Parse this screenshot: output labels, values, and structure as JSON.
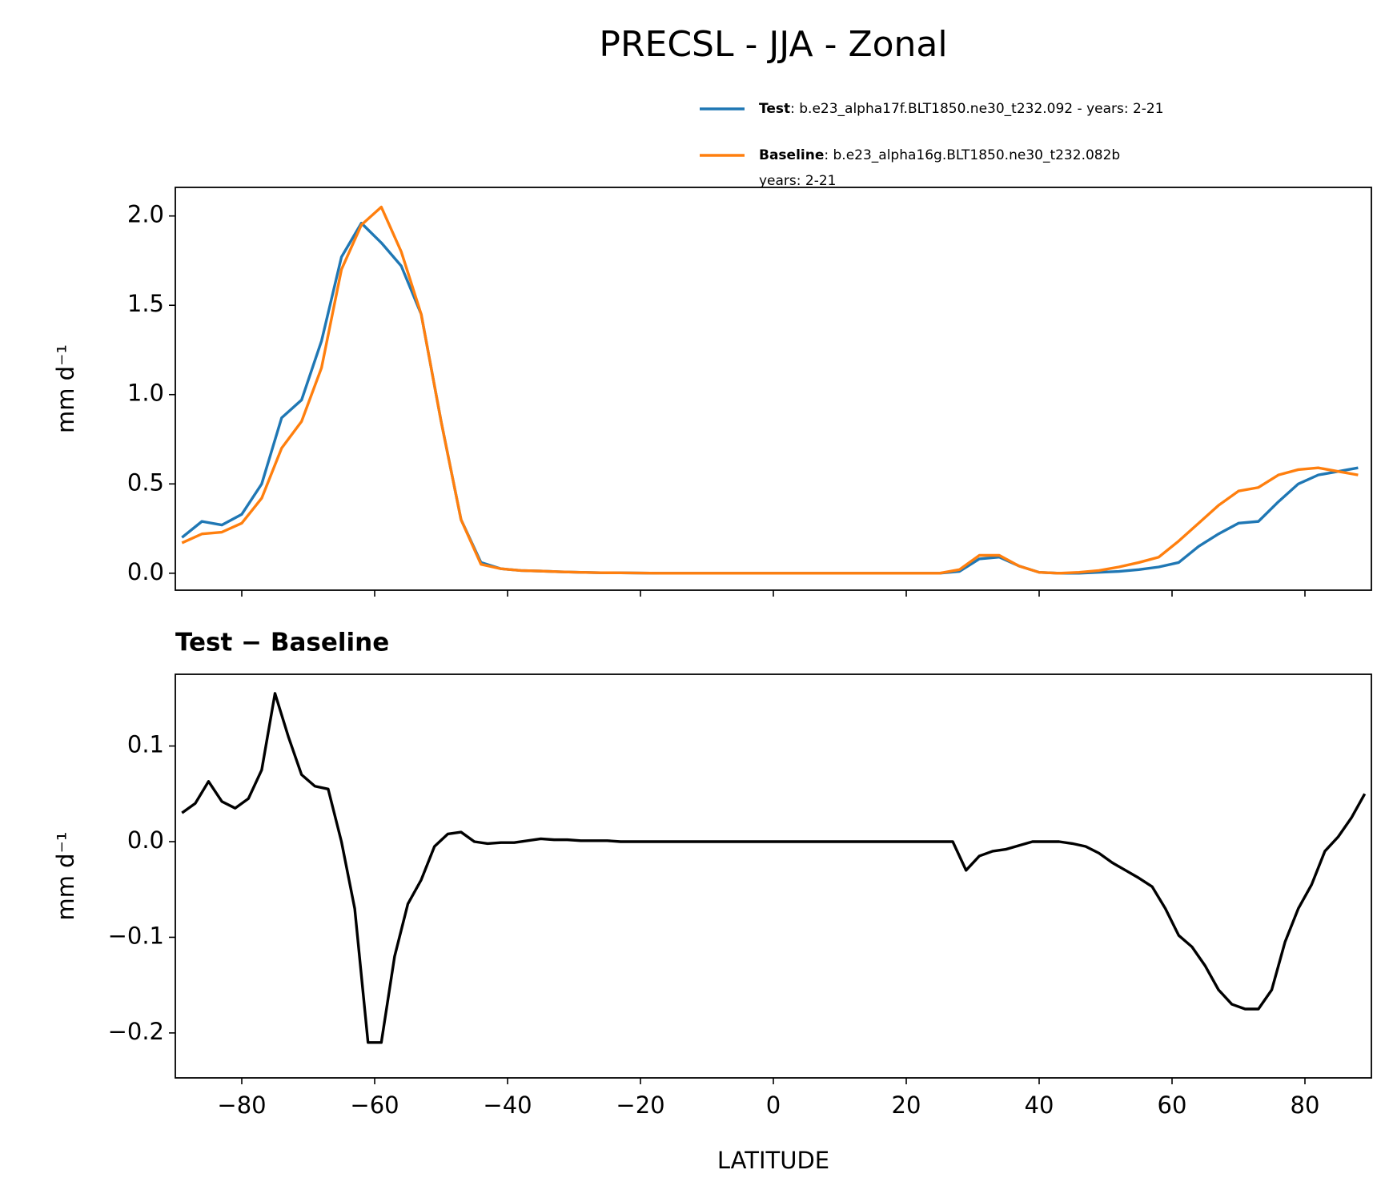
{
  "chart_data": [
    {
      "type": "line",
      "title": "PRECSL - JJA - Zonal",
      "ylabel": "mm d⁻¹",
      "legend": "above-right",
      "xlim": [
        -90,
        90
      ],
      "ylim": [
        -0.095,
        2.16
      ],
      "xticks": [
        -80,
        -60,
        -40,
        -20,
        0,
        20,
        40,
        60,
        80
      ],
      "yticks": [
        {
          "value": 0,
          "label": "0.0"
        },
        0.5,
        {
          "value": 1,
          "label": "1.0"
        },
        1.5,
        {
          "value": 2,
          "label": "2.0"
        }
      ],
      "x": [
        -89,
        -86,
        -83,
        -80,
        -77,
        -74,
        -71,
        -68,
        -65,
        -62,
        -59,
        -56,
        -53,
        -50,
        -47,
        -44,
        -41,
        -38,
        -35,
        -32,
        -29,
        -26,
        -23,
        -20,
        -17,
        -14,
        -11,
        -8,
        -5,
        -2,
        1,
        4,
        7,
        10,
        13,
        16,
        19,
        22,
        25,
        28,
        31,
        34,
        37,
        40,
        43,
        46,
        49,
        52,
        55,
        58,
        61,
        64,
        67,
        70,
        73,
        76,
        79,
        82,
        85,
        88
      ],
      "series": [
        {
          "name": "Test",
          "description": [
            ": b.e23_alpha17f.BLT1850.ne30_t232.092 - years: 2-21"
          ],
          "color": "#1f77b4",
          "values": [
            0.2,
            0.29,
            0.27,
            0.33,
            0.5,
            0.87,
            0.97,
            1.3,
            1.77,
            1.96,
            1.85,
            1.72,
            1.45,
            0.85,
            0.3,
            0.06,
            0.025,
            0.015,
            0.012,
            0.008,
            0.005,
            0.003,
            0.002,
            0.001,
            0,
            0,
            0,
            0,
            0,
            0,
            0,
            0,
            0,
            0,
            0,
            0,
            0,
            0,
            0,
            0.01,
            0.08,
            0.09,
            0.04,
            0.005,
            0,
            0,
            0.005,
            0.01,
            0.02,
            0.035,
            0.06,
            0.15,
            0.22,
            0.28,
            0.29,
            0.4,
            0.5,
            0.55,
            0.57,
            0.59
          ]
        },
        {
          "name": "Baseline",
          "description": [
            ": b.e23_alpha16g.BLT1850.ne30_t232.082b",
            "years: 2-21"
          ],
          "color": "#ff7f0e",
          "values": [
            0.17,
            0.22,
            0.23,
            0.28,
            0.42,
            0.7,
            0.85,
            1.15,
            1.7,
            1.95,
            2.05,
            1.8,
            1.45,
            0.85,
            0.3,
            0.05,
            0.025,
            0.015,
            0.012,
            0.008,
            0.005,
            0.003,
            0.002,
            0.001,
            0,
            0,
            0,
            0,
            0,
            0,
            0,
            0,
            0,
            0,
            0,
            0,
            0,
            0,
            0,
            0.02,
            0.1,
            0.1,
            0.04,
            0.005,
            0,
            0.005,
            0.015,
            0.035,
            0.06,
            0.09,
            0.18,
            0.28,
            0.38,
            0.46,
            0.48,
            0.55,
            0.58,
            0.59,
            0.57,
            0.55
          ]
        }
      ]
    },
    {
      "type": "line",
      "title": "Test − Baseline",
      "ylabel": "mm d⁻¹",
      "xlabel": "LATITUDE",
      "xlim": [
        -90,
        90
      ],
      "ylim": [
        -0.247,
        0.175
      ],
      "xticks": [
        {
          "value": -80,
          "label": "−80"
        },
        {
          "value": -60,
          "label": "−60"
        },
        {
          "value": -40,
          "label": "−40"
        },
        {
          "value": -20,
          "label": "−20"
        },
        0,
        20,
        40,
        60,
        80
      ],
      "yticks": [
        {
          "value": -0.2,
          "label": "−0.2"
        },
        {
          "value": -0.1,
          "label": "−0.1"
        },
        {
          "value": 0,
          "label": "0.0"
        },
        0.1
      ],
      "x": [
        -89,
        -87,
        -85,
        -83,
        -81,
        -79,
        -77,
        -75,
        -73,
        -71,
        -69,
        -67,
        -65,
        -63,
        -61,
        -59,
        -57,
        -55,
        -53,
        -51,
        -49,
        -47,
        -45,
        -43,
        -41,
        -39,
        -37,
        -35,
        -33,
        -31,
        -29,
        -27,
        -25,
        -23,
        -21,
        -19,
        -17,
        -15,
        -13,
        -11,
        -9,
        -7,
        -5,
        -3,
        -1,
        1,
        3,
        5,
        7,
        9,
        11,
        13,
        15,
        17,
        19,
        21,
        23,
        25,
        27,
        29,
        31,
        33,
        35,
        37,
        39,
        41,
        43,
        45,
        47,
        49,
        51,
        53,
        55,
        57,
        59,
        61,
        63,
        65,
        67,
        69,
        71,
        73,
        75,
        77,
        79,
        81,
        83,
        85,
        87,
        89
      ],
      "series": [
        {
          "color": "#000000",
          "values": [
            0.03,
            0.04,
            0.063,
            0.042,
            0.035,
            0.045,
            0.075,
            0.155,
            0.11,
            0.07,
            0.058,
            0.055,
            0.0,
            -0.07,
            -0.21,
            -0.21,
            -0.12,
            -0.065,
            -0.04,
            -0.005,
            0.008,
            0.01,
            0.0,
            -0.002,
            -0.001,
            -0.001,
            0.001,
            0.003,
            0.002,
            0.002,
            0.001,
            0.001,
            0.001,
            0,
            0,
            0,
            0,
            0,
            0,
            0,
            0,
            0,
            0,
            0,
            0,
            0,
            0,
            0,
            0,
            0,
            0,
            0,
            0,
            0,
            0,
            0,
            0,
            0,
            0,
            -0.03,
            -0.015,
            -0.01,
            -0.008,
            -0.004,
            0,
            0,
            0,
            -0.002,
            -0.005,
            -0.012,
            -0.022,
            -0.03,
            -0.038,
            -0.047,
            -0.07,
            -0.098,
            -0.11,
            -0.13,
            -0.155,
            -0.17,
            -0.175,
            -0.175,
            -0.155,
            -0.105,
            -0.07,
            -0.045,
            -0.01,
            0.005,
            0.025,
            0.05
          ]
        }
      ]
    }
  ]
}
